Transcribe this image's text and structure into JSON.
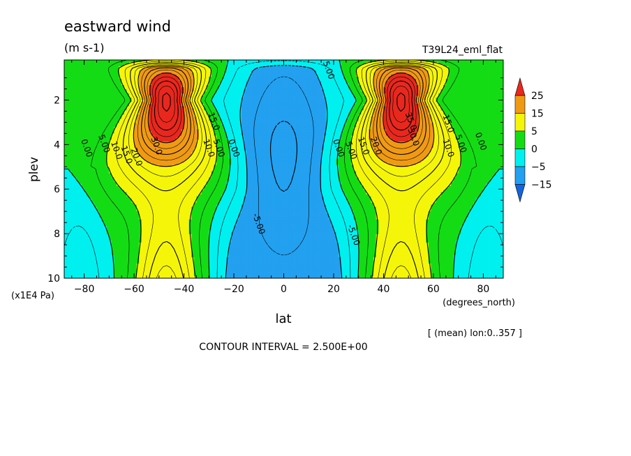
{
  "chart_data": {
    "type": "contour",
    "title": "eastward wind",
    "subtitle": "(m s-1)",
    "experiment": "T39L24_eml_flat",
    "xlabel": "lat",
    "xunit": "(degrees_north)",
    "ylabel": "plev",
    "yunit": "(x1E4 Pa)",
    "xlim": [
      -88,
      88
    ],
    "ylim": [
      10,
      0.2
    ],
    "x_ticks": [
      -80,
      -60,
      -40,
      -20,
      0,
      20,
      40,
      60,
      80
    ],
    "x_tick_labels": [
      "−80",
      "−60",
      "−40",
      "−20",
      "0",
      "20",
      "40",
      "60",
      "80"
    ],
    "y_ticks": [
      2,
      4,
      6,
      8,
      10
    ],
    "y_tick_labels": [
      "2",
      "4",
      "6",
      "8",
      "10"
    ],
    "contour_interval_text": "CONTOUR INTERVAL = 2.500E+00",
    "mean_note": "[ (mean) lon:0..357 ]",
    "colorbar": {
      "levels": [
        -15,
        -5,
        0,
        5,
        15,
        25
      ],
      "labels": [
        "25",
        "15",
        "5",
        "0",
        "−5",
        "−15"
      ],
      "colors": [
        "#e8281e",
        "#f09a14",
        "#f5f50a",
        "#14dc14",
        "#00f0f0",
        "#23a0f0",
        "#1464dc"
      ]
    },
    "contour_labels": [
      {
        "text": "0.00",
        "lat": -80,
        "p": 4.2
      },
      {
        "text": "5.00",
        "lat": -73,
        "p": 4.0
      },
      {
        "text": "10.0",
        "lat": -68,
        "p": 4.3
      },
      {
        "text": "15.0",
        "lat": -64,
        "p": 4.5
      },
      {
        "text": "20.0",
        "lat": -60,
        "p": 4.6
      },
      {
        "text": "30.0",
        "lat": -52,
        "p": 4.1
      },
      {
        "text": "15.0",
        "lat": -29,
        "p": 3.0
      },
      {
        "text": "10.0",
        "lat": -31,
        "p": 4.2
      },
      {
        "text": "5.00",
        "lat": -27,
        "p": 4.2
      },
      {
        "text": "0.00",
        "lat": -21,
        "p": 4.2
      },
      {
        "text": "5.00",
        "lat": 17,
        "p": 0.7
      },
      {
        "text": "-5.00",
        "lat": -11,
        "p": 7.6
      },
      {
        "text": "0.00",
        "lat": 21,
        "p": 4.2
      },
      {
        "text": "5.00",
        "lat": 26,
        "p": 4.3
      },
      {
        "text": "15.0",
        "lat": 31,
        "p": 4.1
      },
      {
        "text": "20.0",
        "lat": 36,
        "p": 4.1
      },
      {
        "text": "30.0",
        "lat": 51,
        "p": 3.7
      },
      {
        "text": "35.0",
        "lat": 50,
        "p": 3.0
      },
      {
        "text": "15.0",
        "lat": 65,
        "p": 3.1
      },
      {
        "text": "10.0",
        "lat": 65,
        "p": 4.2
      },
      {
        "text": "5.00",
        "lat": 70,
        "p": 4.0
      },
      {
        "text": "0.00",
        "lat": 78,
        "p": 3.9
      },
      {
        "text": "-5.00",
        "lat": 27,
        "p": 8.1
      }
    ],
    "field_model": {
      "jets": [
        {
          "lat": -47,
          "p": 2.0,
          "peak": 36
        },
        {
          "lat": 47,
          "p": 2.0,
          "peak": 36
        }
      ],
      "easterlies_min": -11
    },
    "grid": false,
    "legend_position": "right"
  }
}
